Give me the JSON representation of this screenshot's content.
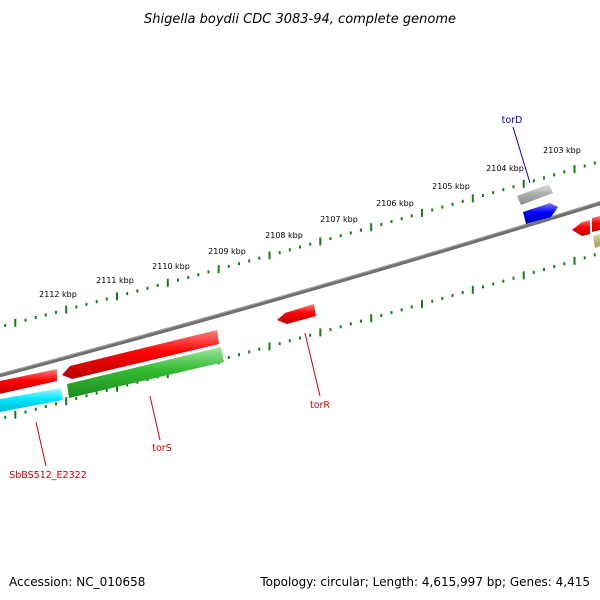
{
  "title": "Shigella boydii CDC 3083-94, complete genome",
  "footer": {
    "accession": "Accession: NC_010658",
    "summary": "Topology: circular; Length: 4,615,997 bp; Genes: 4,415"
  },
  "scale_labels": [
    "2103 kbp",
    "2104 kbp",
    "2105 kbp",
    "2106 kbp",
    "2107 kbp",
    "2108 kbp",
    "2109 kbp",
    "2110 kbp",
    "2111 kbp",
    "2112 kbp"
  ],
  "gene_labels": {
    "torD": "torD",
    "torR": "torR",
    "torS": "torS",
    "sbbs": "SbBS512_E2322"
  },
  "colors": {
    "backbone": "#808080",
    "tick": "#1a7a1a",
    "red": "#ff0000",
    "green": "#33bb33",
    "cyan": "#00e5ff",
    "blue": "#0000ff",
    "gray": "#b0b0b0",
    "olive": "#b5b56a",
    "label_red": "#cc0000",
    "label_blue": "#0000cc"
  }
}
